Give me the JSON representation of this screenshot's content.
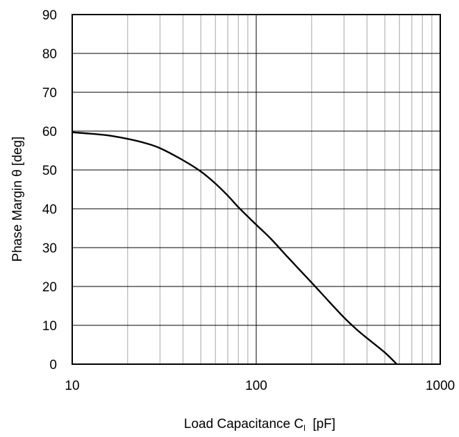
{
  "chart_data": {
    "type": "line",
    "xscale": "log",
    "xlim": [
      10,
      1000
    ],
    "ylim": [
      0,
      90
    ],
    "grid": true,
    "legend": "none",
    "xlabel": {
      "main": "Load Capacitance  C",
      "sub": "l",
      "unit": "  [pF]"
    },
    "ylabel": "Phase Margin  θ [deg]",
    "x_ticks": [
      {
        "value": 10,
        "label": "10"
      },
      {
        "value": 100,
        "label": "100"
      },
      {
        "value": 1000,
        "label": "1000"
      }
    ],
    "y_ticks": [
      {
        "value": 0,
        "label": "0"
      },
      {
        "value": 10,
        "label": "10"
      },
      {
        "value": 20,
        "label": "20"
      },
      {
        "value": 30,
        "label": "30"
      },
      {
        "value": 40,
        "label": "40"
      },
      {
        "value": 50,
        "label": "50"
      },
      {
        "value": 60,
        "label": "60"
      },
      {
        "value": 70,
        "label": "70"
      },
      {
        "value": 80,
        "label": "80"
      },
      {
        "value": 90,
        "label": "90"
      }
    ],
    "series": [
      {
        "color": "#000000",
        "points": [
          [
            10,
            59.7
          ],
          [
            15,
            59.0
          ],
          [
            20,
            58.0
          ],
          [
            25,
            56.9
          ],
          [
            30,
            55.6
          ],
          [
            40,
            52.5
          ],
          [
            50,
            49.6
          ],
          [
            60,
            46.5
          ],
          [
            70,
            43.4
          ],
          [
            80,
            40.4
          ],
          [
            90,
            38.0
          ],
          [
            100,
            35.9
          ],
          [
            120,
            32.3
          ],
          [
            150,
            27.3
          ],
          [
            200,
            21.0
          ],
          [
            250,
            16.0
          ],
          [
            300,
            12.0
          ],
          [
            350,
            9.0
          ],
          [
            400,
            6.7
          ],
          [
            500,
            3.0
          ],
          [
            580,
            0.0
          ]
        ]
      }
    ]
  },
  "colors": {
    "minor_grid": "#b9b9b9",
    "major_grid": "#000000",
    "axis": "#000000",
    "line": "#000000"
  }
}
